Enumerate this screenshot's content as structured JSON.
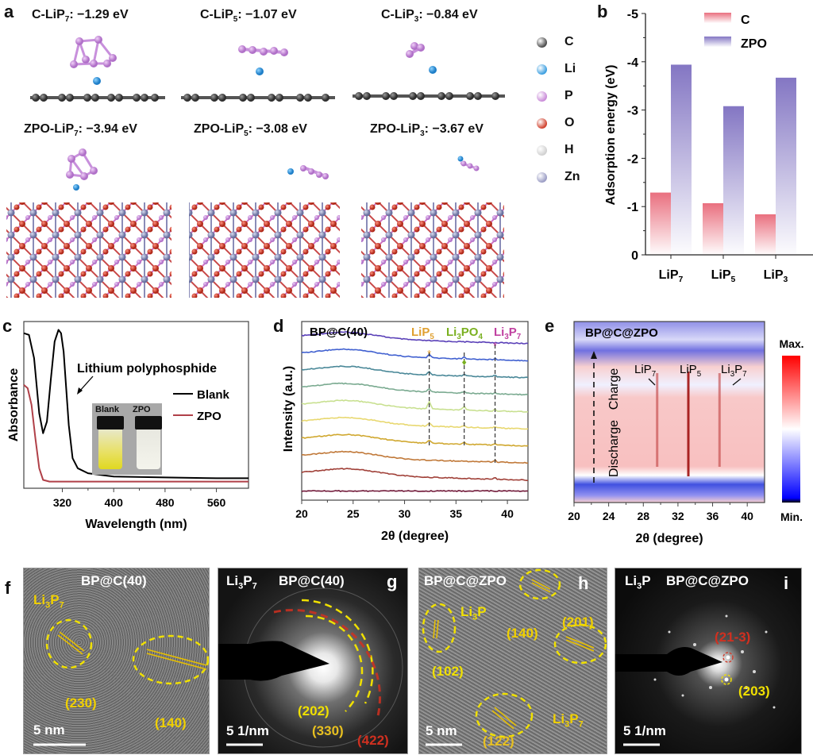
{
  "panels": {
    "a": {
      "label": "a",
      "titles_top": [
        {
          "prefix": "C-LiP",
          "sub": "7",
          "value": ": −1.29 eV"
        },
        {
          "prefix": "C-LiP",
          "sub": "5",
          "value": ": −1.07 eV"
        },
        {
          "prefix": "C-LiP",
          "sub": "3",
          "value": ": −0.84 eV"
        }
      ],
      "titles_bottom": [
        {
          "prefix": "ZPO-LiP",
          "sub": "7",
          "value": ": −3.94 eV"
        },
        {
          "prefix": "ZPO-LiP",
          "sub": "5",
          "value": ": −3.08 eV"
        },
        {
          "prefix": "ZPO-LiP",
          "sub": "3",
          "value": ": −3.67 eV"
        }
      ],
      "atom_legend": [
        {
          "symbol": "C",
          "color": "#4a4a4a"
        },
        {
          "symbol": "Li",
          "color": "#3a9ee0"
        },
        {
          "symbol": "P",
          "color": "#c98ad8"
        },
        {
          "symbol": "O",
          "color": "#d0402c"
        },
        {
          "symbol": "H",
          "color": "#d0d0d0"
        },
        {
          "symbol": "Zn",
          "color": "#9a9cc4"
        }
      ]
    },
    "b": {
      "label": "b"
    },
    "c": {
      "label": "c",
      "annotation": "Lithium polyphosphide",
      "inset_labels": [
        "Blank",
        "ZPO"
      ]
    },
    "d": {
      "label": "d",
      "sample": "BP@C(40)",
      "markers": [
        {
          "name": "LiP",
          "sub": "5",
          "tail": "",
          "color": "#e0a030"
        },
        {
          "name": "Li",
          "sub": "3",
          "tail": "PO",
          "sub2": "4",
          "color": "#7ab020"
        },
        {
          "name": "Li",
          "sub": "3",
          "tail": "P",
          "sub2": "7",
          "color": "#c040a0"
        }
      ]
    },
    "e": {
      "label": "e",
      "sample": "BP@C@ZPO",
      "peaks": [
        "LiP7",
        "LiP5",
        "Li3P7"
      ],
      "peak_labels": [
        {
          "a": "LiP",
          "s": "7",
          "b": "",
          "s2": ""
        },
        {
          "a": "LiP",
          "s": "5",
          "b": "",
          "s2": ""
        },
        {
          "a": "Li",
          "s": "3",
          "b": "P",
          "s2": "7"
        }
      ],
      "direction_labels": {
        "charge": "Charge",
        "discharge": "Discharge"
      },
      "colorbar": {
        "max": "Max.",
        "min": "Min."
      }
    },
    "f": {
      "label": "f",
      "sample": "BP@C(40)",
      "phase": {
        "a": "Li",
        "s": "3",
        "b": "P",
        "s2": "7"
      },
      "planes": [
        "(230)",
        "(140)"
      ],
      "scale": "5 nm"
    },
    "g": {
      "label": "g",
      "sample": "BP@C(40)",
      "phase": {
        "a": "Li",
        "s": "3",
        "b": "P",
        "s2": "7"
      },
      "planes": [
        "(202)",
        "(330)",
        "(422)"
      ],
      "scale": "5 1/nm"
    },
    "h": {
      "label": "h",
      "sample": "BP@C@ZPO",
      "phase1": {
        "a": "Li",
        "s": "3",
        "b": "P"
      },
      "phase2": {
        "a": "Li",
        "s": "3",
        "b": "P",
        "s2": "7"
      },
      "planes": [
        "(140)",
        "(201)",
        "(102)",
        "(122)"
      ],
      "scale": "5 nm"
    },
    "i": {
      "label": "i",
      "sample": "BP@C@ZPO",
      "phase": {
        "a": "Li",
        "s": "3",
        "b": "P"
      },
      "planes": [
        "(21-3)",
        "(203)"
      ],
      "scale": "5 1/nm"
    }
  },
  "chart_data": [
    {
      "id": "b",
      "type": "bar",
      "title": "",
      "xlabel": "",
      "ylabel": "Adsorption energy (eV)",
      "categories": [
        "LiP7",
        "LiP5",
        "LiP3"
      ],
      "category_display": [
        {
          "a": "LiP",
          "s": "7"
        },
        {
          "a": "LiP",
          "s": "5"
        },
        {
          "a": "LiP",
          "s": "3"
        }
      ],
      "series": [
        {
          "name": "C",
          "values": [
            -1.29,
            -1.07,
            -0.84
          ],
          "color": "#e86878"
        },
        {
          "name": "ZPO",
          "values": [
            -3.94,
            -3.08,
            -3.67
          ],
          "color": "#7d6fc0"
        }
      ],
      "ylim": [
        0,
        -5
      ],
      "yticks": [
        "0",
        "-1",
        "-2",
        "-3",
        "-4",
        "-5"
      ],
      "yaxis_inverted": true,
      "legend": "top-right"
    },
    {
      "id": "c",
      "type": "line",
      "xlabel": "Wavelength (nm)",
      "ylabel": "Absorbance",
      "xlim": [
        260,
        610
      ],
      "xticks": [
        "320",
        "400",
        "480",
        "560"
      ],
      "series": [
        {
          "name": "Blank",
          "color": "#000000",
          "x": [
            260,
            268,
            276,
            284,
            290,
            296,
            302,
            308,
            314,
            318,
            322,
            326,
            330,
            336,
            344,
            360,
            400,
            480,
            560,
            610
          ],
          "y": [
            0.93,
            0.92,
            0.78,
            0.45,
            0.33,
            0.4,
            0.65,
            0.88,
            0.95,
            0.93,
            0.82,
            0.6,
            0.38,
            0.18,
            0.12,
            0.09,
            0.07,
            0.065,
            0.06,
            0.06
          ]
        },
        {
          "name": "ZPO",
          "color": "#b04048",
          "x": [
            260,
            266,
            272,
            278,
            284,
            290,
            300,
            320,
            400,
            480,
            560,
            610
          ],
          "y": [
            0.62,
            0.6,
            0.5,
            0.3,
            0.12,
            0.05,
            0.04,
            0.04,
            0.04,
            0.04,
            0.04,
            0.04
          ]
        }
      ],
      "legend": "right",
      "annotations": [
        "Lithium polyphosphide"
      ]
    },
    {
      "id": "d",
      "type": "line",
      "title": "BP@C(40)",
      "xlabel": "2θ (degree)",
      "ylabel": "Intensity (a.u.)",
      "xlim": [
        20,
        42
      ],
      "xticks": [
        "20",
        "25",
        "30",
        "35",
        "40"
      ],
      "n_curves": 10,
      "curve_colors": [
        "#5a40b8",
        "#4060d0",
        "#4a8898",
        "#7aaa90",
        "#c8e090",
        "#e8d870",
        "#d0a830",
        "#c07838",
        "#a04038",
        "#701838"
      ],
      "reference_lines": [
        {
          "label": "LiP5",
          "x": 32.4
        },
        {
          "label": "Li3PO4",
          "x": 35.8
        },
        {
          "label": "Li3P7",
          "x": 38.8
        }
      ]
    },
    {
      "id": "e",
      "type": "heatmap",
      "title": "BP@C@ZPO",
      "xlabel": "2θ (degree)",
      "xlim": [
        20,
        42
      ],
      "xticks": [
        "20",
        "24",
        "28",
        "32",
        "36",
        "40"
      ],
      "peaks_x": [
        29.6,
        33.2,
        36.8
      ],
      "colorbar": {
        "max_label": "Max.",
        "min_label": "Min.",
        "colors": [
          "#ff0000",
          "#ffffff",
          "#0000ff"
        ]
      }
    }
  ]
}
